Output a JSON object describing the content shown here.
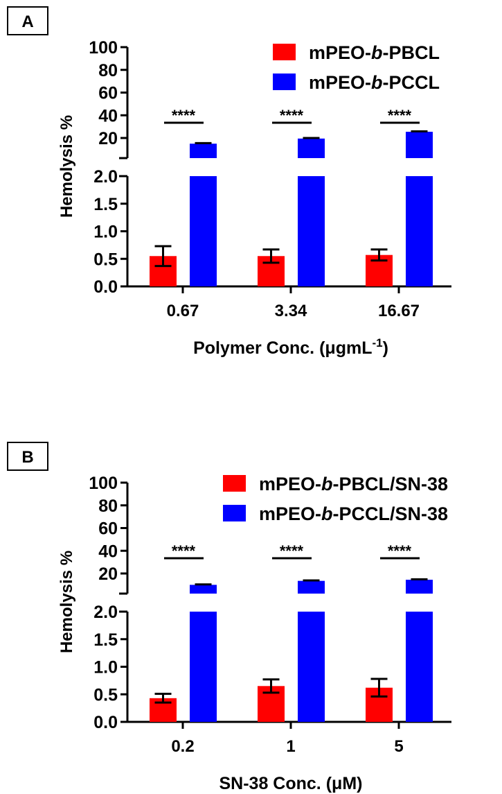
{
  "chart_data": [
    {
      "type": "bar",
      "panel_label": "A",
      "ylabel": "Hemolysis %",
      "xlabel": "Polymer Conc. (μgmL",
      "xlabel_sup": "-1",
      "xlabel_end": ")",
      "categories": [
        "0.67",
        "3.34",
        "16.67"
      ],
      "y_axis_break": true,
      "ylim_lower": [
        0,
        2.0
      ],
      "yticks_lower": [
        "0.0",
        "0.5",
        "1.0",
        "1.5",
        "2.0"
      ],
      "yticks_upper": [
        "20",
        "40",
        "60",
        "80",
        "100"
      ],
      "legend_placement": "top-right",
      "series": [
        {
          "name": "mPEO-b-PBCL",
          "name_prefix": "mPEO-",
          "name_italic": "b",
          "name_suffix": "-PBCL",
          "color": "#ff0000",
          "values": [
            0.55,
            0.55,
            0.57
          ],
          "errors": [
            0.18,
            0.12,
            0.1
          ]
        },
        {
          "name": "mPEO-b-PCCL",
          "name_prefix": "mPEO-",
          "name_italic": "b",
          "name_suffix": "-PCCL",
          "color": "#0000ff",
          "values": [
            15,
            19.5,
            25.5
          ],
          "errors": [
            0.5,
            0.5,
            0.4
          ]
        }
      ],
      "significance": [
        "****",
        "****",
        "****"
      ]
    },
    {
      "type": "bar",
      "panel_label": "B",
      "ylabel": "Hemolysis %",
      "xlabel": "SN-38 Conc. (μM)",
      "xlabel_sup": "",
      "xlabel_end": "",
      "categories": [
        "0.2",
        "1",
        "5"
      ],
      "y_axis_break": true,
      "ylim_lower": [
        0,
        2.0
      ],
      "yticks_lower": [
        "0.0",
        "0.5",
        "1.0",
        "1.5",
        "2.0"
      ],
      "yticks_upper": [
        "20",
        "40",
        "60",
        "80",
        "100"
      ],
      "legend_placement": "top-right",
      "series": [
        {
          "name": "mPEO-b-PBCL/SN-38",
          "name_prefix": "mPEO-",
          "name_italic": "b",
          "name_suffix": "-PBCL/SN-38",
          "color": "#ff0000",
          "values": [
            0.43,
            0.65,
            0.62
          ],
          "errors": [
            0.08,
            0.12,
            0.16
          ]
        },
        {
          "name": "mPEO-b-PCCL/SN-38",
          "name_prefix": "mPEO-",
          "name_italic": "b",
          "name_suffix": "-PCCL/SN-38",
          "color": "#0000ff",
          "values": [
            10,
            13.5,
            14.5
          ],
          "errors": [
            0.4,
            0.4,
            0.4
          ]
        }
      ],
      "significance": [
        "****",
        "****",
        "****"
      ]
    }
  ]
}
